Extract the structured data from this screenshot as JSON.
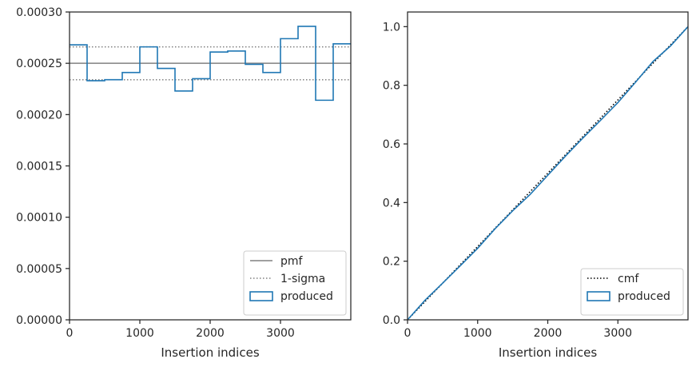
{
  "chart_data": [
    {
      "type": "step",
      "xlabel": "Insertion indices",
      "ylabel": "",
      "xlim": [
        0,
        4000
      ],
      "ylim": [
        0,
        0.0003
      ],
      "xticks": [
        0,
        1000,
        2000,
        3000
      ],
      "xtick_labels": [
        "0",
        "1000",
        "2000",
        "3000"
      ],
      "yticks": [
        0,
        5e-05,
        0.0001,
        0.00015,
        0.0002,
        0.00025,
        0.0003
      ],
      "ytick_labels": [
        "0.00000",
        "0.00005",
        "0.00010",
        "0.00015",
        "0.00020",
        "0.00025",
        "0.00030"
      ],
      "grid": false,
      "legend_position": "lower-right",
      "legend": [
        "pmf",
        "1-sigma",
        "produced"
      ],
      "reference_lines": [
        {
          "name": "pmf",
          "y": 0.00025,
          "style": "solid",
          "color": "#808080"
        },
        {
          "name": "1-sigma",
          "y": 0.000266,
          "style": "dotted",
          "color": "#808080"
        },
        {
          "name": "1-sigma",
          "y": 0.000234,
          "style": "dotted",
          "color": "#808080"
        }
      ],
      "series": [
        {
          "name": "produced",
          "color": "#1f77b4",
          "bin_edges": [
            0,
            250,
            500,
            750,
            1000,
            1250,
            1500,
            1750,
            2000,
            2250,
            2500,
            2750,
            3000,
            3250,
            3500,
            3750,
            4000
          ],
          "values": [
            0.000268,
            0.000233,
            0.000234,
            0.000241,
            0.000266,
            0.000245,
            0.000223,
            0.000235,
            0.000261,
            0.000262,
            0.000249,
            0.000241,
            0.000274,
            0.000286,
            0.000214,
            0.000269
          ]
        }
      ]
    },
    {
      "type": "line",
      "xlabel": "Insertion indices",
      "ylabel": "",
      "xlim": [
        0,
        4000
      ],
      "ylim": [
        0,
        1.05
      ],
      "xticks": [
        0,
        1000,
        2000,
        3000
      ],
      "xtick_labels": [
        "0",
        "1000",
        "2000",
        "3000"
      ],
      "yticks": [
        0,
        0.2,
        0.4,
        0.6,
        0.8,
        1.0
      ],
      "ytick_labels": [
        "0.0",
        "0.2",
        "0.4",
        "0.6",
        "0.8",
        "1.0"
      ],
      "grid": false,
      "legend_position": "lower-right",
      "legend": [
        "cmf",
        "produced"
      ],
      "series": [
        {
          "name": "cmf",
          "style": "dotted",
          "color": "#000000",
          "x": [
            0,
            4000
          ],
          "y": [
            0,
            1.0
          ]
        },
        {
          "name": "produced",
          "style": "solid",
          "color": "#1f77b4",
          "x": [
            0,
            250,
            500,
            750,
            1000,
            1250,
            1500,
            1750,
            2000,
            2250,
            2500,
            2750,
            3000,
            3250,
            3500,
            3750,
            4000
          ],
          "y": [
            0,
            0.067,
            0.125,
            0.184,
            0.244,
            0.311,
            0.372,
            0.428,
            0.493,
            0.558,
            0.62,
            0.68,
            0.741,
            0.81,
            0.881,
            0.934,
            1.0
          ]
        }
      ]
    }
  ]
}
